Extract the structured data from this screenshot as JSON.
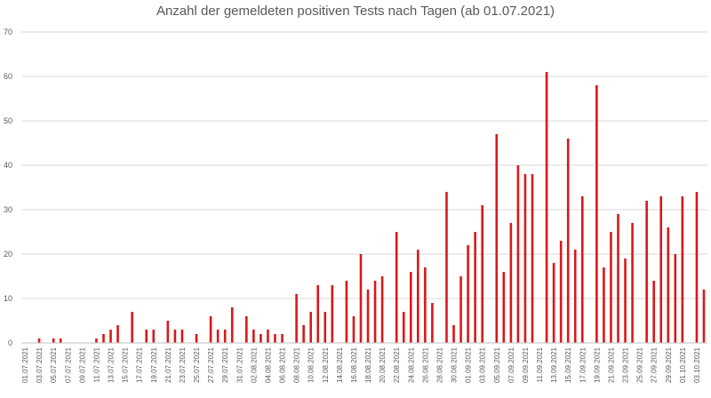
{
  "chart_data": {
    "type": "bar",
    "title": "Anzahl der gemeldeten positiven Tests nach Tagen (ab 01.07.2021)",
    "xlabel": "",
    "ylabel": "",
    "ylim": [
      0,
      70
    ],
    "yticks": [
      0,
      10,
      20,
      30,
      40,
      50,
      60,
      70
    ],
    "grid": true,
    "bar_color": "#d9181a",
    "categories": [
      "01.07.2021",
      "02.07.2021",
      "03.07.2021",
      "04.07.2021",
      "05.07.2021",
      "06.07.2021",
      "07.07.2021",
      "08.07.2021",
      "09.07.2021",
      "10.07.2021",
      "11.07.2021",
      "12.07.2021",
      "13.07.2021",
      "14.07.2021",
      "15.07.2021",
      "16.07.2021",
      "17.07.2021",
      "18.07.2021",
      "19.07.2021",
      "20.07.2021",
      "21.07.2021",
      "22.07.2021",
      "23.07.2021",
      "24.07.2021",
      "25.07.2021",
      "26.07.2021",
      "27.07.2021",
      "28.07.2021",
      "29.07.2021",
      "30.07.2021",
      "31.07.2021",
      "01.08.2021",
      "02.08.2021",
      "03.08.2021",
      "04.08.2021",
      "05.08.2021",
      "06.08.2021",
      "07.08.2021",
      "08.08.2021",
      "09.08.2021",
      "10.08.2021",
      "11.08.2021",
      "12.08.2021",
      "13.08.2021",
      "14.08.2021",
      "15.08.2021",
      "16.08.2021",
      "17.08.2021",
      "18.08.2021",
      "19.08.2021",
      "20.08.2021",
      "21.08.2021",
      "22.08.2021",
      "23.08.2021",
      "24.08.2021",
      "25.08.2021",
      "26.08.2021",
      "27.08.2021",
      "28.08.2021",
      "29.08.2021",
      "30.08.2021",
      "31.08.2021",
      "01.09.2021",
      "02.09.2021",
      "03.09.2021",
      "04.09.2021",
      "05.09.2021",
      "06.09.2021",
      "07.09.2021",
      "08.09.2021",
      "09.09.2021",
      "10.09.2021",
      "11.09.2021",
      "12.09.2021",
      "13.09.2021",
      "14.09.2021",
      "15.09.2021",
      "16.09.2021",
      "17.09.2021",
      "18.09.2021",
      "19.09.2021",
      "20.09.2021",
      "21.09.2021",
      "22.09.2021",
      "23.09.2021",
      "24.09.2021",
      "25.09.2021",
      "26.09.2021",
      "27.09.2021",
      "28.09.2021",
      "29.09.2021",
      "30.09.2021",
      "01.10.2021",
      "02.10.2021",
      "03.10.2021",
      "04.10.2021"
    ],
    "xtick_labels": [
      "01.07.2021",
      "03.07.2021",
      "05.07.2021",
      "07.07.2021",
      "09.07.2021",
      "11.07.2021",
      "13.07.2021",
      "15.07.2021",
      "17.07.2021",
      "19.07.2021",
      "21.07.2021",
      "23.07.2021",
      "25.07.2021",
      "27.07.2021",
      "29.07.2021",
      "31.07.2021",
      "02.08.2021",
      "04.08.2021",
      "06.08.2021",
      "08.08.2021",
      "10.08.2021",
      "12.08.2021",
      "14.08.2021",
      "16.08.2021",
      "18.08.2021",
      "20.08.2021",
      "22.08.2021",
      "24.08.2021",
      "26.08.2021",
      "28.08.2021",
      "30.08.2021",
      "01.09.2021",
      "03.09.2021",
      "05.09.2021",
      "07.09.2021",
      "09.09.2021",
      "11.09.2021",
      "13.09.2021",
      "15.09.2021",
      "17.09.2021",
      "19.09.2021",
      "21.09.2021",
      "23.09.2021",
      "25.09.2021",
      "27.09.2021",
      "29.09.2021",
      "01.10.2021",
      "03.10.2021"
    ],
    "values": [
      0,
      0,
      1,
      0,
      1,
      1,
      0,
      0,
      0,
      0,
      1,
      2,
      3,
      4,
      0,
      7,
      0,
      3,
      3,
      0,
      5,
      3,
      3,
      0,
      2,
      0,
      6,
      3,
      3,
      8,
      0,
      6,
      3,
      2,
      3,
      2,
      2,
      0,
      11,
      4,
      7,
      13,
      7,
      13,
      0,
      14,
      6,
      20,
      12,
      14,
      15,
      0,
      25,
      7,
      16,
      21,
      17,
      9,
      0,
      34,
      4,
      15,
      22,
      25,
      31,
      0,
      47,
      16,
      27,
      40,
      38,
      38,
      0,
      61,
      18,
      23,
      46,
      21,
      33,
      0,
      58,
      17,
      25,
      29,
      19,
      27,
      0,
      32,
      14,
      33,
      26,
      20,
      33,
      0,
      34,
      12
    ]
  }
}
